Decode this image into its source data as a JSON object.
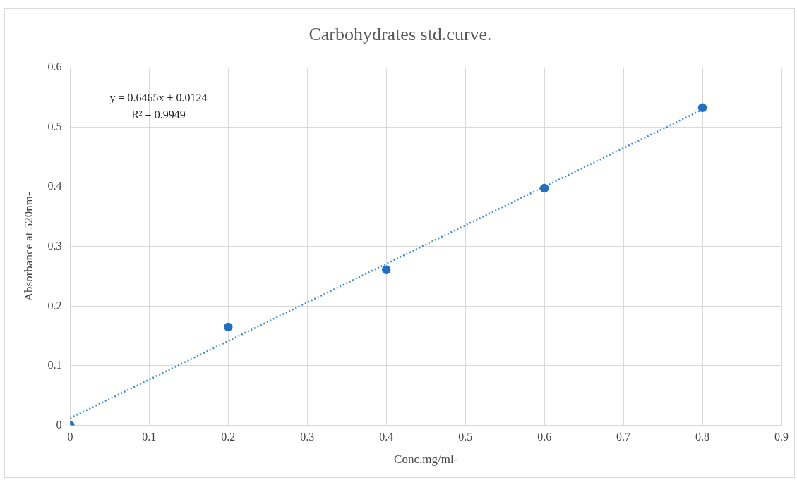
{
  "chart_data": {
    "type": "scatter",
    "title": "Carbohydrates std.curve.",
    "xlabel": "Conc.mg/ml-",
    "ylabel": "Absorbance at 520nm-",
    "annotations": [
      "y = 0.6465x + 0.0124",
      "R² = 0.9949"
    ],
    "series": [
      {
        "color": "#1f6fc5",
        "x": [
          0,
          0.2,
          0.4,
          0.6,
          0.8
        ],
        "values": [
          0,
          0.165,
          0.261,
          0.398,
          0.533
        ],
        "marker": "circle"
      },
      {
        "type": "line",
        "color": "#3d8fd8",
        "x": [
          0,
          0.8
        ],
        "values": [
          0.012,
          0.53
        ],
        "line_style": "dotted",
        "marker": "none"
      }
    ],
    "xlim": [
      0,
      0.9
    ],
    "xticks": [
      0,
      0.1,
      0.2,
      0.3,
      0.4,
      0.5,
      0.6,
      0.7,
      0.8,
      0.9
    ],
    "ylim": [
      0,
      0.6
    ],
    "yticks": [
      0,
      0.1,
      0.2,
      0.3,
      0.4,
      0.5,
      0.6
    ],
    "grid": true,
    "legend": false
  }
}
